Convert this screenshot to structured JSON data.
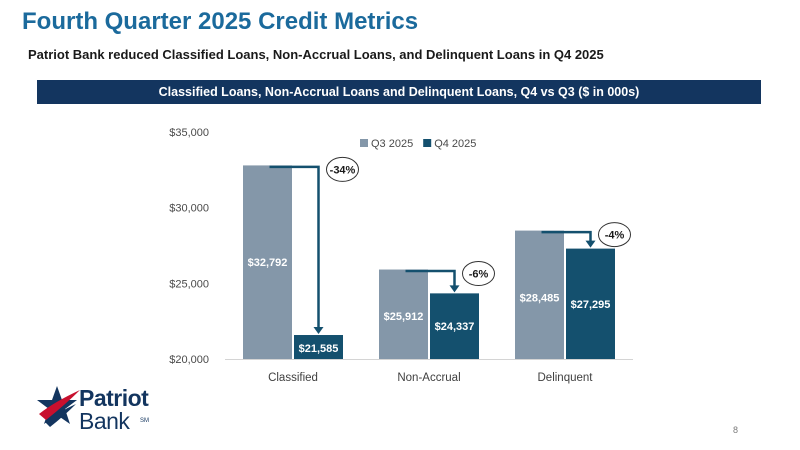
{
  "slide": {
    "title": "Fourth Quarter 2025 Credit Metrics",
    "subtitle": "Patriot Bank reduced Classified Loans, Non-Accrual Loans, and Delinquent Loans in Q4 2025",
    "banner": "Classified Loans, Non-Accrual Loans and Delinquent Loans, Q4 vs Q3 ($ in 000s)",
    "page_number": "8"
  },
  "logo": {
    "line1": "Patriot",
    "line2": "Bank",
    "trademark": "SM",
    "icon": "star-swoosh-icon",
    "colors": {
      "navy": "#13355f",
      "red": "#c8102e"
    }
  },
  "chart_data": {
    "type": "bar",
    "categories": [
      "Classified",
      "Non-Accrual",
      "Delinquent"
    ],
    "series": [
      {
        "name": "Q3 2025",
        "color": "#8497a9",
        "values": [
          32792,
          25912,
          28485
        ],
        "labels": [
          "$32,792",
          "$25,912",
          "$28,485"
        ]
      },
      {
        "name": "Q4 2025",
        "color": "#14506e",
        "values": [
          21585,
          24337,
          27295
        ],
        "labels": [
          "$21,585",
          "$24,337",
          "$27,295"
        ]
      }
    ],
    "change_labels": [
      "-34%",
      "-6%",
      "-4%"
    ],
    "ylim": [
      20000,
      35000
    ],
    "yticks": [
      20000,
      25000,
      30000,
      35000
    ],
    "ytick_labels": [
      "$20,000",
      "$25,000",
      "$30,000",
      "$35,000"
    ],
    "grid": false,
    "legend_position": "top-right",
    "arrow_color": "#14506e"
  }
}
